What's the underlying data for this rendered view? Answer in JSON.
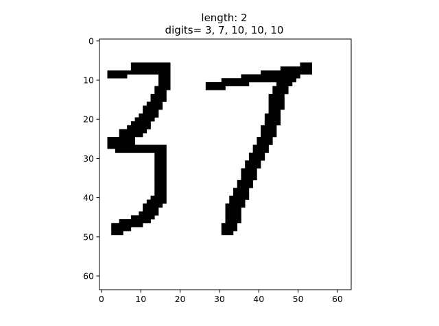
{
  "chart_data": {
    "type": "heatmap",
    "title_lines": [
      "length: 2",
      "digits= 3, 7, 10, 10, 10"
    ],
    "xlim": [
      -0.5,
      63.5
    ],
    "ylim": [
      63.5,
      -0.5
    ],
    "xticks": [
      0,
      10,
      20,
      30,
      40,
      50,
      60
    ],
    "yticks": [
      0,
      10,
      20,
      30,
      40,
      50,
      60
    ],
    "grid": false,
    "colormap": "gray_r",
    "pixel_color": "#000000",
    "background_color": "#ffffff",
    "ink_pixels_rle": [
      [
        6,
        8,
        17
      ],
      [
        6,
        51,
        53
      ],
      [
        7,
        8,
        17
      ],
      [
        7,
        46,
        53
      ],
      [
        8,
        2,
        17
      ],
      [
        8,
        41,
        53
      ],
      [
        9,
        2,
        6
      ],
      [
        9,
        15,
        17
      ],
      [
        9,
        36,
        50
      ],
      [
        10,
        15,
        17
      ],
      [
        10,
        31,
        49
      ],
      [
        11,
        15,
        17
      ],
      [
        11,
        27,
        37
      ],
      [
        11,
        45,
        48
      ],
      [
        12,
        14,
        17
      ],
      [
        12,
        27,
        31
      ],
      [
        12,
        44,
        47
      ],
      [
        13,
        14,
        16
      ],
      [
        13,
        44,
        47
      ],
      [
        14,
        13,
        16
      ],
      [
        14,
        43,
        46
      ],
      [
        15,
        13,
        16
      ],
      [
        15,
        43,
        46
      ],
      [
        16,
        12,
        15
      ],
      [
        16,
        43,
        46
      ],
      [
        17,
        11,
        15
      ],
      [
        17,
        43,
        46
      ],
      [
        18,
        11,
        14
      ],
      [
        18,
        43,
        45
      ],
      [
        19,
        10,
        14
      ],
      [
        19,
        42,
        45
      ],
      [
        20,
        9,
        13
      ],
      [
        20,
        42,
        45
      ],
      [
        21,
        8,
        12
      ],
      [
        21,
        42,
        45
      ],
      [
        22,
        7,
        12
      ],
      [
        22,
        41,
        44
      ],
      [
        23,
        5,
        11
      ],
      [
        23,
        41,
        44
      ],
      [
        24,
        5,
        10
      ],
      [
        24,
        41,
        44
      ],
      [
        25,
        2,
        8
      ],
      [
        25,
        40,
        43
      ],
      [
        26,
        2,
        8
      ],
      [
        26,
        40,
        43
      ],
      [
        27,
        2,
        16
      ],
      [
        27,
        39,
        42
      ],
      [
        28,
        4,
        16
      ],
      [
        28,
        39,
        42
      ],
      [
        29,
        14,
        16
      ],
      [
        29,
        38,
        41
      ],
      [
        30,
        14,
        16
      ],
      [
        30,
        38,
        41
      ],
      [
        31,
        14,
        16
      ],
      [
        31,
        37,
        40
      ],
      [
        32,
        14,
        16
      ],
      [
        32,
        37,
        40
      ],
      [
        33,
        14,
        16
      ],
      [
        33,
        36,
        39
      ],
      [
        34,
        14,
        16
      ],
      [
        34,
        36,
        39
      ],
      [
        35,
        14,
        16
      ],
      [
        35,
        36,
        39
      ],
      [
        36,
        14,
        16
      ],
      [
        36,
        35,
        38
      ],
      [
        37,
        14,
        16
      ],
      [
        37,
        35,
        38
      ],
      [
        38,
        14,
        16
      ],
      [
        38,
        34,
        37
      ],
      [
        39,
        14,
        16
      ],
      [
        39,
        34,
        37
      ],
      [
        40,
        13,
        16
      ],
      [
        40,
        33,
        37
      ],
      [
        41,
        12,
        16
      ],
      [
        41,
        33,
        36
      ],
      [
        42,
        11,
        15
      ],
      [
        42,
        32,
        36
      ],
      [
        43,
        11,
        14
      ],
      [
        43,
        32,
        35
      ],
      [
        44,
        10,
        14
      ],
      [
        44,
        32,
        35
      ],
      [
        45,
        8,
        13
      ],
      [
        45,
        32,
        35
      ],
      [
        46,
        5,
        12
      ],
      [
        46,
        32,
        35
      ],
      [
        47,
        3,
        10
      ],
      [
        47,
        31,
        34
      ],
      [
        48,
        3,
        7
      ],
      [
        48,
        31,
        34
      ],
      [
        49,
        3,
        5
      ],
      [
        49,
        31,
        33
      ]
    ]
  }
}
